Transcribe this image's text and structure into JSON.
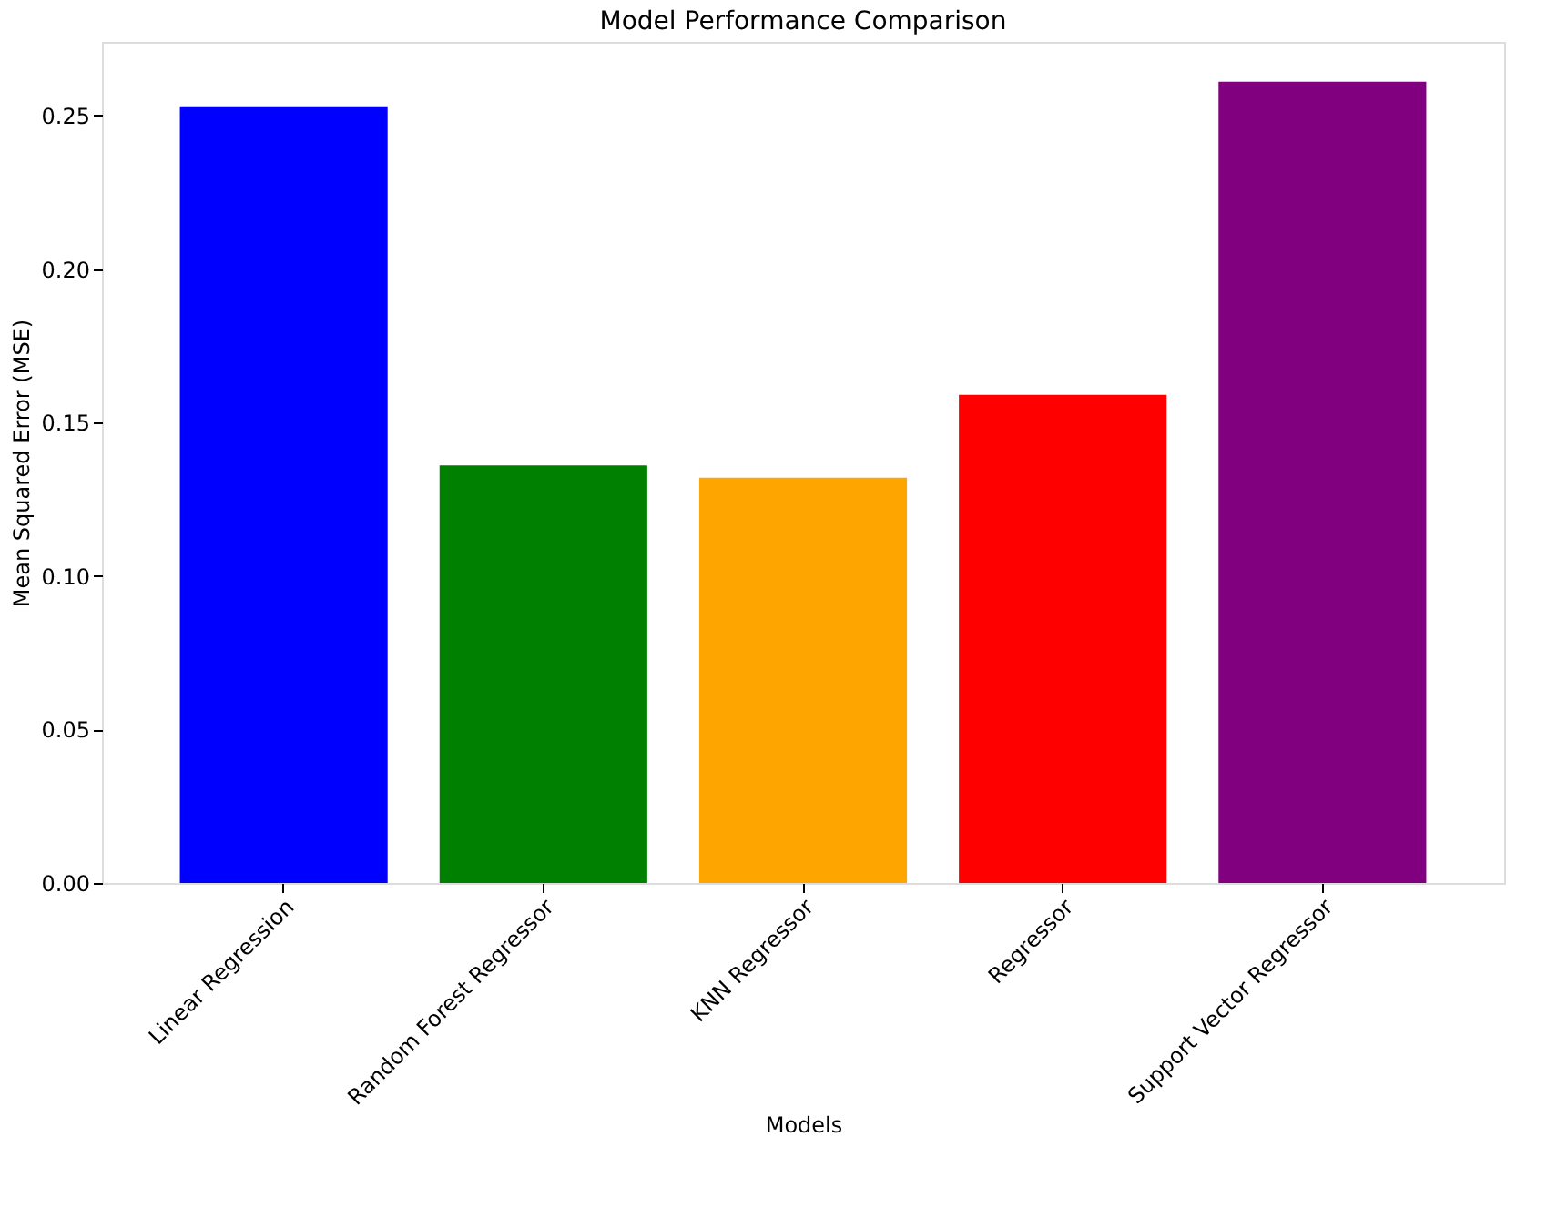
{
  "chart_data": {
    "type": "bar",
    "title": "Model Performance Comparison",
    "xlabel": "Models",
    "ylabel": "Mean Squared Error (MSE)",
    "categories": [
      "Linear Regression",
      "Random Forest Regressor",
      "KNN Regressor",
      "Regressor",
      "Support Vector Regressor"
    ],
    "values": [
      0.253,
      0.136,
      0.132,
      0.159,
      0.261
    ],
    "colors": [
      "#0000ff",
      "#008000",
      "#ffa500",
      "#ff0000",
      "#800080"
    ],
    "ylim": [
      0,
      0.274
    ],
    "yticks": [
      {
        "value": 0,
        "label": "0.00"
      },
      {
        "value": 0.05,
        "label": "0.05"
      },
      {
        "value": 0.1,
        "label": "0.10"
      },
      {
        "value": 0.15,
        "label": "0.15"
      },
      {
        "value": 0.2,
        "label": "0.20"
      },
      {
        "value": 0.25,
        "label": "0.25"
      }
    ],
    "grid": false
  }
}
